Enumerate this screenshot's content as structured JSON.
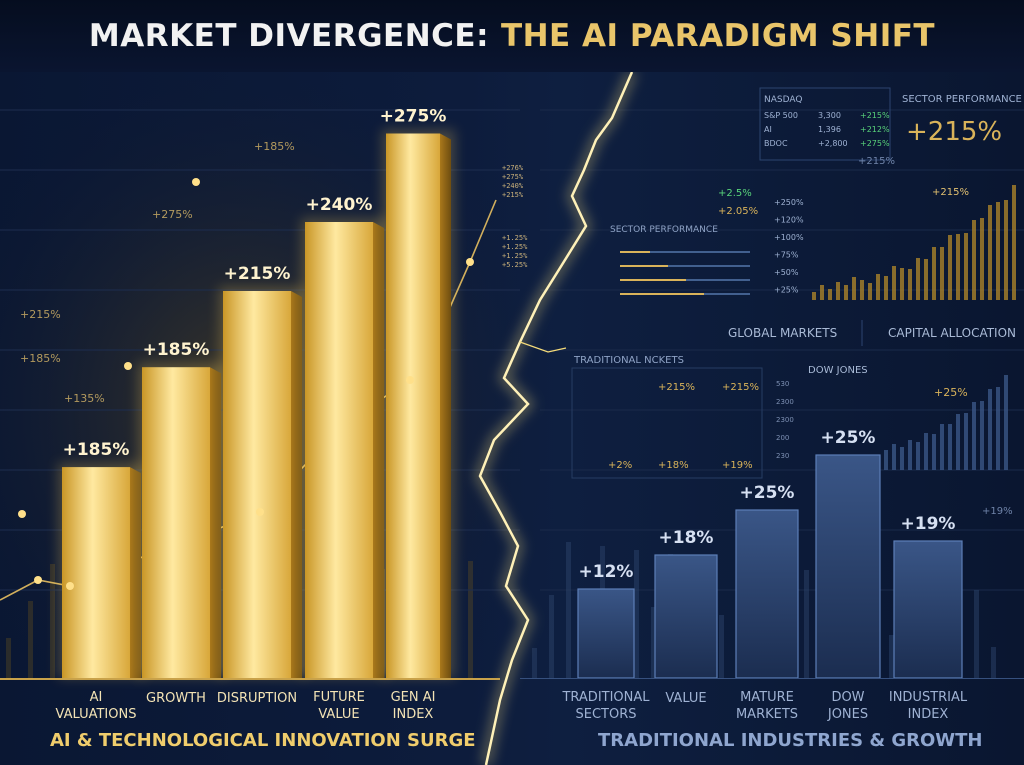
{
  "title": {
    "part1": "MARKET DIVERGENCE:",
    "part2": "THE AI PARADIGM SHIFT"
  },
  "captions": {
    "left": "AI & TECHNOLOGICAL INNOVATION SURGE",
    "right": "TRADITIONAL INDUSTRIES & GROWTH"
  },
  "colors": {
    "ai_gold": "#f3d06a",
    "ai_gold_dark": "#b8891f",
    "traditional_blue": "#2b4572",
    "traditional_edge": "#5d7fb8",
    "background": "#0b1833"
  },
  "chart_data": [
    {
      "type": "bar",
      "group": "AI & Technological Innovation Surge",
      "categories": [
        [
          "AI",
          "VALUATIONS"
        ],
        [
          "GROWTH"
        ],
        [
          "DISRUPTION"
        ],
        [
          "FUTURE",
          "VALUE"
        ],
        [
          "GEN AI",
          "INDEX"
        ]
      ],
      "values": [
        185,
        185,
        215,
        240,
        275
      ],
      "labels": [
        "+185%",
        "+185%",
        "+215%",
        "+240%",
        "+275%"
      ],
      "unit": "%"
    },
    {
      "type": "bar",
      "group": "Traditional Industries & Growth",
      "categories": [
        [
          "TRADITIONAL",
          "SECTORS"
        ],
        [
          "VALUE"
        ],
        [
          "MATURE",
          "MARKETS"
        ],
        [
          "DOW",
          "JONES"
        ],
        [
          "INDUSTRIAL",
          "INDEX"
        ]
      ],
      "values": [
        12,
        18,
        25,
        25,
        19
      ],
      "labels": [
        "+12%",
        "+18%",
        "+25%",
        "+25%",
        "+19%"
      ],
      "unit": "%"
    }
  ],
  "background_text": {
    "left_floats": [
      "+185%",
      "+215%",
      "+135%",
      "+185%",
      "+275%"
    ],
    "left_ticker": [
      "+276%",
      "+275%",
      "+240%",
      "+215%",
      "+1.25%",
      "+1.25%",
      "+1.25%",
      "+5.25%"
    ],
    "right_upper_headers": [
      "NASDAQ",
      "SECTOR PERFORMANCE"
    ],
    "right_upper_table": [
      [
        "S&P 500",
        "3,300",
        "+215%"
      ],
      [
        "AI",
        "1,396",
        "+212%"
      ],
      [
        "BDOC",
        "+2,800",
        "+275%"
      ]
    ],
    "right_upper_big": "+215%",
    "right_upper_sub": "+215%",
    "sector_perf_label": "SECTOR PERFORMANCE",
    "sector_perf_values": [
      "+2.5%",
      "+2.05%"
    ],
    "mini_axis": [
      "+250%",
      "+120%",
      "+100%",
      "+75%",
      "+50%",
      "+25%"
    ],
    "mini_peak": "+215%",
    "global_markets": "GLOBAL MARKETS",
    "capital_allocation": "CAPITAL ALLOCATION",
    "traditional_markets": "TRADITIONAL NCKETS",
    "trad_values": [
      "+215%",
      "+215%",
      "+2%",
      "+18%",
      "+19%"
    ],
    "trad_axis": [
      "530",
      "2300",
      "2300",
      "200",
      "230"
    ],
    "dow_jones": "DOW JONES",
    "dow_value": "+25%",
    "far_right_value": "+19%"
  }
}
